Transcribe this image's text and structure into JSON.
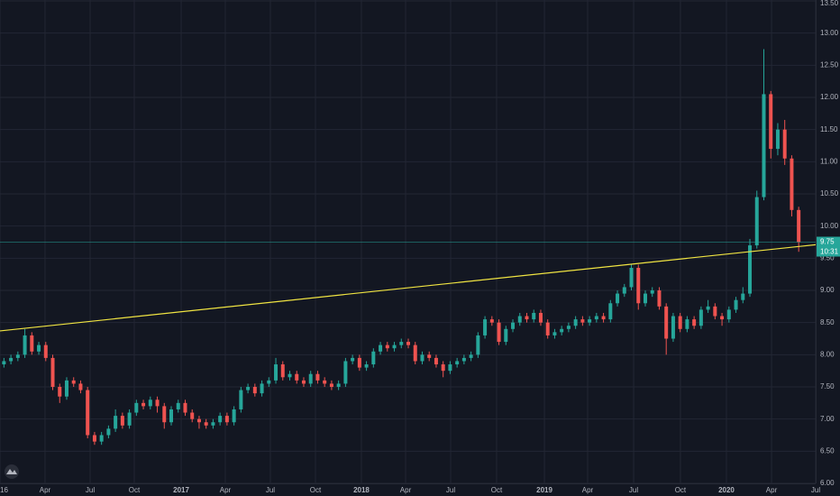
{
  "chart_data": {
    "type": "candlestick",
    "up_color": "#26a69a",
    "down_color": "#ef5350",
    "open": [
      7.85,
      7.9,
      7.95,
      8.0,
      8.3,
      8.05,
      8.15,
      7.95,
      7.5,
      7.35,
      7.6,
      7.55,
      7.45,
      6.75,
      6.65,
      6.75,
      6.85,
      7.05,
      6.9,
      7.1,
      7.25,
      7.2,
      7.3,
      7.2,
      6.95,
      7.15,
      7.25,
      7.1,
      7.0,
      6.95,
      6.9,
      6.95,
      7.05,
      6.95,
      7.15,
      7.45,
      7.5,
      7.4,
      7.55,
      7.6,
      7.85,
      7.65,
      7.7,
      7.6,
      7.55,
      7.7,
      7.6,
      7.55,
      7.5,
      7.55,
      7.9,
      7.95,
      7.8,
      7.85,
      8.05,
      8.15,
      8.1,
      8.15,
      8.2,
      8.15,
      7.9,
      8.0,
      7.95,
      7.85,
      7.75,
      7.85,
      7.9,
      7.95,
      8.0,
      8.3,
      8.55,
      8.5,
      8.2,
      8.4,
      8.5,
      8.6,
      8.55,
      8.65,
      8.5,
      8.3,
      8.35,
      8.4,
      8.45,
      8.55,
      8.5,
      8.55,
      8.6,
      8.55,
      8.8,
      8.95,
      9.05,
      9.35,
      8.8,
      8.95,
      9.0,
      8.75,
      8.25,
      8.6,
      8.4,
      8.55,
      8.45,
      8.7,
      8.75,
      8.6,
      8.55,
      8.7,
      8.85,
      8.95,
      9.7,
      10.45,
      12.05,
      11.2,
      11.5,
      11.05,
      10.25
    ],
    "high": [
      7.95,
      8.0,
      8.05,
      8.4,
      8.35,
      8.2,
      8.2,
      8.0,
      7.55,
      7.65,
      7.65,
      7.6,
      7.5,
      6.8,
      6.8,
      6.9,
      7.15,
      7.1,
      7.15,
      7.3,
      7.3,
      7.35,
      7.35,
      7.25,
      7.2,
      7.3,
      7.3,
      7.15,
      7.05,
      7.0,
      7.0,
      7.1,
      7.1,
      7.2,
      7.5,
      7.55,
      7.55,
      7.6,
      7.65,
      7.95,
      7.9,
      7.75,
      7.75,
      7.65,
      7.75,
      7.75,
      7.65,
      7.6,
      7.6,
      7.95,
      8.0,
      8.0,
      7.9,
      8.1,
      8.2,
      8.2,
      8.2,
      8.25,
      8.25,
      8.2,
      8.05,
      8.05,
      8.0,
      7.9,
      7.9,
      7.95,
      8.0,
      8.05,
      8.35,
      8.6,
      8.6,
      8.55,
      8.45,
      8.55,
      8.65,
      8.65,
      8.7,
      8.7,
      8.55,
      8.4,
      8.45,
      8.5,
      8.6,
      8.6,
      8.6,
      8.65,
      8.65,
      8.85,
      9.0,
      9.1,
      9.4,
      9.4,
      9.0,
      9.05,
      9.05,
      8.8,
      8.65,
      8.65,
      8.6,
      8.6,
      8.75,
      8.85,
      8.8,
      8.65,
      8.75,
      8.9,
      9.05,
      9.8,
      10.55,
      12.75,
      12.1,
      11.6,
      11.65,
      11.1,
      10.3
    ],
    "low": [
      7.8,
      7.85,
      7.9,
      7.95,
      8.0,
      8.0,
      7.9,
      7.45,
      7.25,
      7.3,
      7.5,
      7.4,
      6.7,
      6.6,
      6.6,
      6.7,
      6.8,
      6.85,
      6.85,
      7.05,
      7.15,
      7.15,
      7.1,
      6.85,
      6.9,
      7.1,
      7.05,
      6.95,
      6.85,
      6.85,
      6.85,
      6.9,
      6.9,
      6.9,
      7.1,
      7.4,
      7.35,
      7.35,
      7.5,
      7.55,
      7.6,
      7.6,
      7.55,
      7.5,
      7.5,
      7.55,
      7.5,
      7.45,
      7.45,
      7.5,
      7.85,
      7.75,
      7.75,
      7.8,
      8.0,
      8.05,
      8.05,
      8.1,
      8.1,
      7.85,
      7.85,
      7.9,
      7.8,
      7.65,
      7.7,
      7.8,
      7.85,
      7.9,
      7.95,
      8.25,
      8.45,
      8.15,
      8.15,
      8.35,
      8.45,
      8.5,
      8.5,
      8.45,
      8.25,
      8.25,
      8.3,
      8.35,
      8.4,
      8.45,
      8.45,
      8.5,
      8.5,
      8.5,
      8.75,
      8.9,
      9.0,
      8.7,
      8.75,
      8.9,
      8.7,
      8.0,
      8.2,
      8.35,
      8.35,
      8.4,
      8.4,
      8.65,
      8.55,
      8.45,
      8.5,
      8.65,
      8.8,
      8.9,
      9.65,
      10.4,
      11.05,
      11.1,
      10.95,
      10.15,
      9.6
    ],
    "close": [
      7.9,
      7.95,
      8.0,
      8.3,
      8.05,
      8.15,
      7.95,
      7.5,
      7.35,
      7.6,
      7.55,
      7.45,
      6.75,
      6.65,
      6.75,
      6.85,
      7.05,
      6.9,
      7.1,
      7.25,
      7.2,
      7.3,
      7.2,
      6.95,
      7.15,
      7.25,
      7.1,
      7.0,
      6.95,
      6.9,
      6.95,
      7.05,
      6.95,
      7.15,
      7.45,
      7.5,
      7.4,
      7.55,
      7.6,
      7.85,
      7.65,
      7.7,
      7.6,
      7.55,
      7.7,
      7.6,
      7.55,
      7.5,
      7.55,
      7.9,
      7.95,
      7.8,
      7.85,
      8.05,
      8.15,
      8.1,
      8.15,
      8.2,
      8.15,
      7.9,
      8.0,
      7.95,
      7.85,
      7.75,
      7.85,
      7.9,
      7.95,
      8.0,
      8.3,
      8.55,
      8.5,
      8.2,
      8.4,
      8.5,
      8.6,
      8.55,
      8.65,
      8.5,
      8.3,
      8.35,
      8.4,
      8.45,
      8.55,
      8.5,
      8.55,
      8.6,
      8.55,
      8.8,
      8.95,
      9.05,
      9.35,
      8.8,
      8.95,
      9.0,
      8.75,
      8.25,
      8.6,
      8.4,
      8.55,
      8.45,
      8.7,
      8.75,
      8.6,
      8.55,
      8.7,
      8.85,
      8.95,
      9.7,
      10.45,
      12.05,
      11.2,
      11.5,
      11.05,
      10.25,
      9.75
    ],
    "trendline": {
      "x": [
        0,
        117
      ],
      "y": [
        8.37,
        9.71
      ],
      "color": "#f0e442"
    },
    "countdown": "10:31",
    "xlim": [
      0,
      117
    ],
    "xticks": [
      {
        "value": 0,
        "label": "16"
      },
      {
        "value": 6.46,
        "label": "Apr"
      },
      {
        "value": 12.93,
        "label": "Jul"
      },
      {
        "value": 19.26,
        "label": "Oct"
      },
      {
        "value": 25.99,
        "label": "2017"
      },
      {
        "value": 32.32,
        "label": "Apr"
      },
      {
        "value": 38.78,
        "label": "Jul"
      },
      {
        "value": 45.25,
        "label": "Oct"
      },
      {
        "value": 51.84,
        "label": "2018"
      },
      {
        "value": 58.18,
        "label": "Apr"
      },
      {
        "value": 64.64,
        "label": "Jul"
      },
      {
        "value": 71.23,
        "label": "Oct"
      },
      {
        "value": 78.09,
        "label": "2019"
      },
      {
        "value": 84.29,
        "label": "Apr"
      },
      {
        "value": 90.89,
        "label": "Jul"
      },
      {
        "value": 97.6,
        "label": "Oct"
      },
      {
        "value": 104.2,
        "label": "2020"
      },
      {
        "value": 110.67,
        "label": "Apr"
      },
      {
        "value": 117,
        "label": "Jul"
      }
    ],
    "ylim": [
      6,
      13.5
    ],
    "yticks": [
      {
        "value": 6,
        "label": "6.00"
      },
      {
        "value": 6.5,
        "label": "6.50"
      },
      {
        "value": 7,
        "label": "7.00"
      },
      {
        "value": 7.5,
        "label": "7.50"
      },
      {
        "value": 8,
        "label": "8.00"
      },
      {
        "value": 8.5,
        "label": "8.50"
      },
      {
        "value": 9,
        "label": "9.00"
      },
      {
        "value": 9.5,
        "label": "9.50"
      },
      {
        "value": 10,
        "label": "10.00"
      },
      {
        "value": 10.5,
        "label": "10.50"
      },
      {
        "value": 11,
        "label": "11.00"
      },
      {
        "value": 11.5,
        "label": "11.50"
      },
      {
        "value": 12,
        "label": "12.00"
      },
      {
        "value": 12.5,
        "label": "12.50"
      },
      {
        "value": 13,
        "label": "13.00"
      },
      {
        "value": 13.5,
        "label": "13.50"
      }
    ],
    "grid": true
  }
}
